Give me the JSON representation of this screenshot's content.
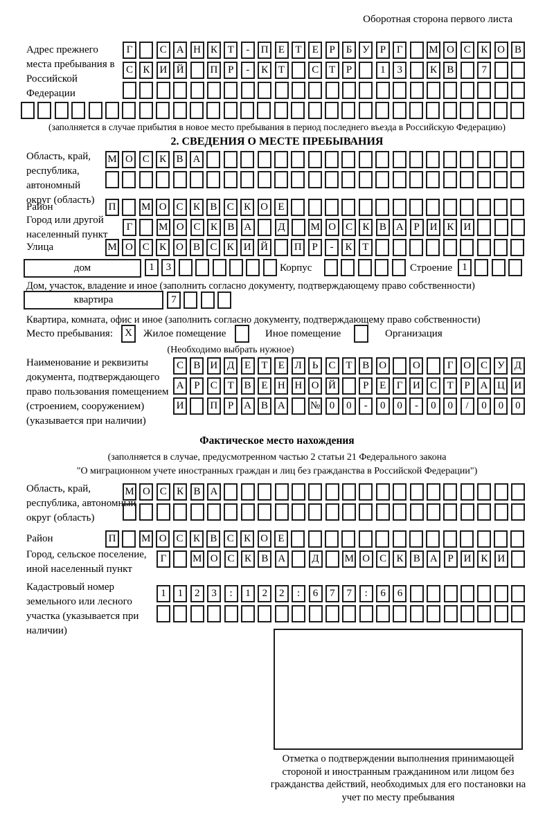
{
  "colors": {
    "ink": "#1c1c1c",
    "paper": "#ffffff"
  },
  "header": {
    "note": "Оборотная сторона первого листа"
  },
  "prev_address": {
    "label": "Адрес прежнего места пребывания в Российской Федерации",
    "row1": {
      "c": "Г САНКТ-ПЕТЕРБУРГ МОСКОВ",
      "n": 24
    },
    "row2": {
      "c": "СКИЙ ПР-КТ СТР 13 КВ 7",
      "n": 24
    },
    "row3": {
      "c": "",
      "n": 24
    },
    "row4": {
      "c": "",
      "n": 30
    },
    "note": "(заполняется в случае прибытия в новое место пребывания в период последнего въезда в Российскую Федерацию)"
  },
  "section2": {
    "title": "2. СВЕДЕНИЯ О МЕСТЕ ПРЕБЫВАНИЯ",
    "region_label": "Область, край, республика, автономный округ (область)",
    "region_row1": {
      "c": "МОСКВА",
      "n": 25
    },
    "region_row2": {
      "c": "",
      "n": 25
    },
    "district_label": "Район",
    "district_row": {
      "c": "П МОСКВСКОЕ",
      "n": 25
    },
    "city_label": "Город или другой населенный пункт",
    "city_row": {
      "c": "Г МОСКВА Д МОСКВАРИКИ",
      "n": 24
    },
    "street_label": "Улица",
    "street_row": {
      "c": "МОСКОВСКИЙ ПР-КТ",
      "n": 25
    },
    "house_box_label": "дом",
    "house_row": {
      "c": "13",
      "n": 8
    },
    "korpus_label": "Корпус",
    "korpus_row": {
      "c": "",
      "n": 5
    },
    "stroenie_label": "Строение",
    "stroenie_row": {
      "c": "1",
      "n": 4
    },
    "house_note": "Дом, участок, владение и иное (заполнить согласно документу, подтверждающему право собственности)",
    "apartment_box_label": "квартира",
    "apartment_row": {
      "c": "7",
      "n": 4
    },
    "apartment_note": "Квартира, комната, офис и иное (заполнить согласно документу, подтверждающему право собственности)",
    "stay": {
      "label": "Место пребывания:",
      "opt1_mark": "X",
      "opt1_label": "Жилое помещение",
      "opt2_mark": "",
      "opt2_label": "Иное помещение",
      "opt3_mark": "",
      "opt3_label": "Организация",
      "note": "(Необходимо выбрать нужное)"
    },
    "document_label": "Наименование и реквизиты документа, подтверждающего право пользования помещением (строением, сооружением) (указывается при наличии)",
    "document_row1": {
      "c": "СВИДЕТЕЛЬСТВО О ГОСУД",
      "n": 21
    },
    "document_row2": {
      "c": "АРСТВЕННОЙ РЕГИСТРАЦИ",
      "n": 21
    },
    "document_row3": {
      "c": "И ПРАВА №00-00-00/000",
      "n": 21
    }
  },
  "actual": {
    "title": "Фактическое место нахождения",
    "note1": "(заполняется в случае, предусмотренном частью 2 статьи 21 Федерального закона",
    "note2": "\"О миграционном учете иностранных граждан и лиц без гражданства в Российской Федерации\")",
    "region_label": "Область, край, республика, автономный округ (область)",
    "region_row1": {
      "c": "МОСКВА",
      "n": 24
    },
    "region_row2": {
      "c": "",
      "n": 24
    },
    "district_label": "Район",
    "district_row": {
      "c": "П МОСКВСКОЕ",
      "n": 25
    },
    "city_label": "Город, сельское поселение, иной населенный пункт",
    "city_row": {
      "c": "Г МОСКВА Д МОСКВАРИКИ",
      "n": 22
    },
    "cadastral_label": "Кадастровый номер земельного или лесного участка (указывается при наличии)",
    "cadastral_row1": {
      "c": "1123:122:677:66",
      "n": 22
    },
    "cadastral_row2": {
      "c": "",
      "n": 22
    },
    "stamp_note": "Отметка о подтверждении выполнения принимающей стороной и иностранным гражданином или лицом без гражданства действий, необходимых для его постановки на учет по месту пребывания"
  }
}
